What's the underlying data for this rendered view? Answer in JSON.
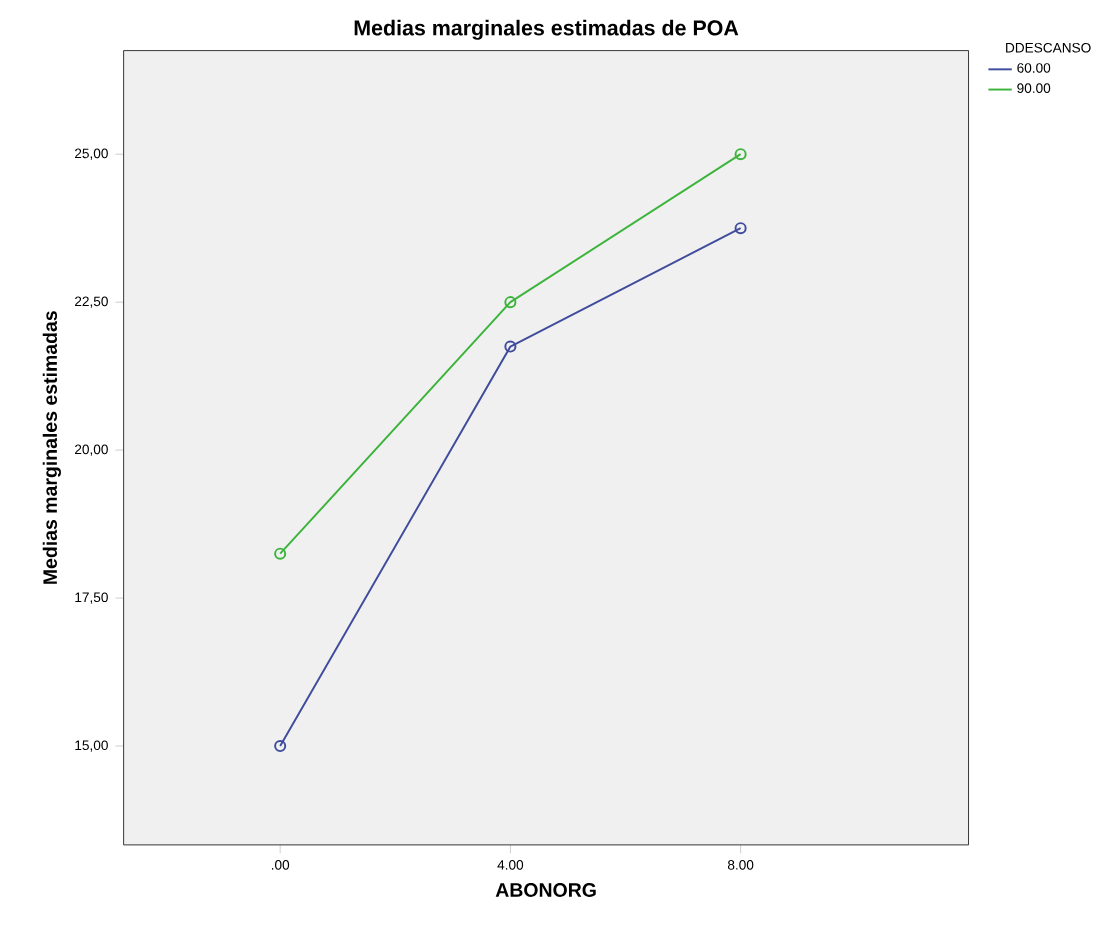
{
  "chart_data": {
    "type": "line",
    "title": "Medias marginales estimadas de POA",
    "xlabel": "ABONORG",
    "ylabel": "Medias marginales estimadas",
    "legend_title": "DDESCANSO",
    "categories": [
      ".00",
      "4.00",
      "8.00"
    ],
    "series": [
      {
        "name": "60.00",
        "color": "#3f4c9c",
        "values": [
          15.0,
          21.75,
          23.75
        ]
      },
      {
        "name": "90.00",
        "color": "#3cb43c",
        "values": [
          18.25,
          22.5,
          25.0
        ]
      }
    ],
    "ylim": [
      13.33,
      26.75
    ],
    "yticks": [
      {
        "value": 15,
        "label": "15,00"
      },
      {
        "value": 17.5,
        "label": "17,50"
      },
      {
        "value": 20,
        "label": "20,00"
      },
      {
        "value": 22.5,
        "label": "22,50"
      },
      {
        "value": 25,
        "label": "25,00"
      }
    ],
    "marker": "circle",
    "legend": "top right"
  }
}
